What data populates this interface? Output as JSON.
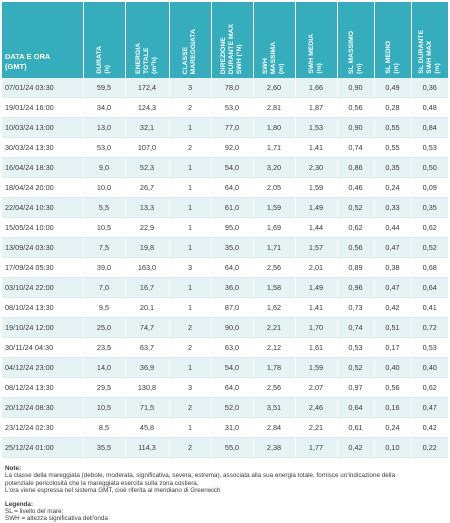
{
  "headers": [
    "DATA E ORA\n(GMT)",
    "DURATA\n(h)",
    "ENERGIA\nTOTALE\n(m²h)",
    "CLASSE\nMAREGGIATA",
    "DIREZIONE\nDURANTE MAX\nSWH (°N)",
    "SWH\nMASSIMA\n(m)",
    "SWH MEDIA\n(m)",
    "SL MASSIMO\n(m)",
    "SL MEDIO\n(m)",
    "SL DURANTE\nSWH MAX\n(m)"
  ],
  "rows": [
    [
      "07/01/24 03:30",
      "59,5",
      "172,4",
      "3",
      "78,0",
      "2,60",
      "1,66",
      "0,90",
      "0,49",
      "0,36"
    ],
    [
      "19/01/24 16:00",
      "34,0",
      "124,3",
      "2",
      "53,0",
      "2,81",
      "1,87",
      "0,56",
      "0,28",
      "0,48"
    ],
    [
      "10/03/24 13:00",
      "13,0",
      "32,1",
      "1",
      "77,0",
      "1,80",
      "1,53",
      "0,90",
      "0,55",
      "0,84"
    ],
    [
      "30/03/24 13:30",
      "53,0",
      "107,0",
      "2",
      "92,0",
      "1,71",
      "1,41",
      "0,74",
      "0,55",
      "0,53"
    ],
    [
      "16/04/24 18:30",
      "9,0",
      "52,3",
      "1",
      "54,0",
      "3,20",
      "2,30",
      "0,86",
      "0,35",
      "0,50"
    ],
    [
      "18/04/24 20:00",
      "10,0",
      "26,7",
      "1",
      "64,0",
      "2,05",
      "1,59",
      "0,46",
      "0,24",
      "0,09"
    ],
    [
      "22/04/24 10:30",
      "5,5",
      "13,3",
      "1",
      "61,0",
      "1,59",
      "1,49",
      "0,52",
      "0,33",
      "0,35"
    ],
    [
      "15/05/24 10:00",
      "10,5",
      "22,9",
      "1",
      "95,0",
      "1,69",
      "1,44",
      "0,62",
      "0,44",
      "0,62"
    ],
    [
      "13/09/24 03:30",
      "7,5",
      "19,8",
      "1",
      "35,0",
      "1,71",
      "1,57",
      "0,56",
      "0,47",
      "0,52"
    ],
    [
      "17/09/24 05:30",
      "39,0",
      "163,0",
      "3",
      "64,0",
      "2,56",
      "2,01",
      "0,89",
      "0,38",
      "0,68"
    ],
    [
      "03/10/24 22:00",
      "7,0",
      "16,7",
      "1",
      "36,0",
      "1,58",
      "1,49",
      "0,96",
      "0,47",
      "0,64"
    ],
    [
      "08/10/24 13:30",
      "9,5",
      "20,1",
      "1",
      "87,0",
      "1,62",
      "1,41",
      "0,73",
      "0,42",
      "0,41"
    ],
    [
      "19/10/24 12:00",
      "25,0",
      "74,7",
      "2",
      "90,0",
      "2,21",
      "1,70",
      "0,74",
      "0,51",
      "0,72"
    ],
    [
      "30/11/24 04:30",
      "23,5",
      "63,7",
      "2",
      "63,0",
      "2,12",
      "1,61",
      "0,53",
      "0,17",
      "0,53"
    ],
    [
      "04/12/24 23:00",
      "14,0",
      "36,9",
      "1",
      "54,0",
      "1,78",
      "1,59",
      "0,52",
      "0,40",
      "0,40"
    ],
    [
      "08/12/24 13:30",
      "29,5",
      "130,8",
      "3",
      "64,0",
      "2,56",
      "2,07",
      "0,97",
      "0,56",
      "0,62"
    ],
    [
      "20/12/24 08:30",
      "10,5",
      "71,5",
      "2",
      "52,0",
      "3,51",
      "2,46",
      "0,64",
      "0,16",
      "0,47"
    ],
    [
      "23/12/24 02:30",
      "8,5",
      "45,8",
      "1",
      "31,0",
      "2,84",
      "2,21",
      "0,61",
      "0,24",
      "0,42"
    ],
    [
      "25/12/24 01:00",
      "35,5",
      "114,3",
      "2",
      "55,0",
      "2,38",
      "1,77",
      "0,42",
      "0,10",
      "0,22"
    ]
  ],
  "notes": {
    "title": "Note:",
    "lines": [
      "La classe della mareggiata (debole, moderata, significativa, severa, estrema), associata alla sua energia totale, fornisce un'indicazione della",
      "potenziale pericolosità che la mareggiata esercita sulla zona costiera.",
      "L'ora viene espressa nel sistema GMT, cioè riferita al meridiano di Greenwich"
    ]
  },
  "legend": {
    "title": "Legenda:",
    "lines": [
      "SL = livello del mare;",
      "SWH = altezza significativa dell'onda"
    ]
  },
  "colors": {
    "header_bg": "#36adbd",
    "row_alt_bg": "#e5f3f5"
  }
}
